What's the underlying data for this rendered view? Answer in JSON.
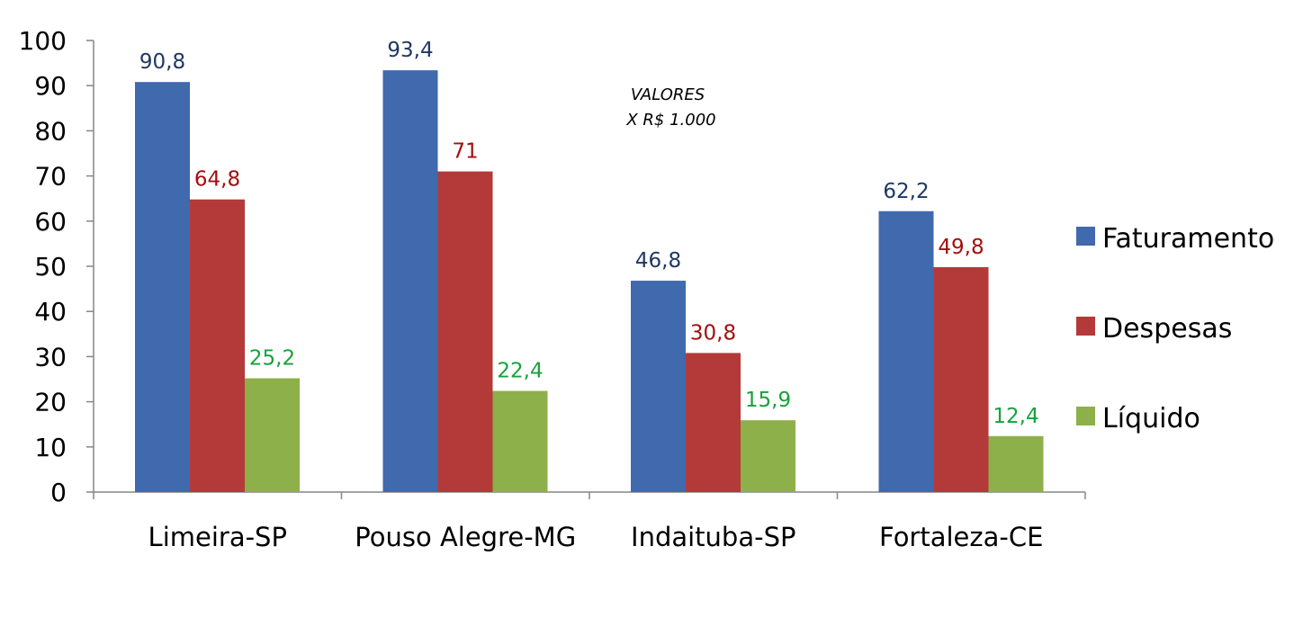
{
  "chart_data": {
    "type": "bar",
    "categories": [
      "Limeira-SP",
      "Pouso Alegre-MG",
      "Indaituba-SP",
      "Fortaleza-CE"
    ],
    "series": [
      {
        "name": "Faturamento",
        "values": [
          90.8,
          93.4,
          46.8,
          62.2
        ],
        "labels": [
          "90,8",
          "93,4",
          "46,8",
          "62,2"
        ],
        "color": "#4069AE",
        "label_color": "#1F3864"
      },
      {
        "name": "Despesas",
        "values": [
          64.8,
          71,
          30.8,
          49.8
        ],
        "labels": [
          "64,8",
          "71",
          "30,8",
          "49,8"
        ],
        "color": "#B43A3A",
        "label_color": "#A30F0F"
      },
      {
        "name": "Líquido",
        "values": [
          25.2,
          22.4,
          15.9,
          12.4
        ],
        "labels": [
          "25,2",
          "22,4",
          "15,9",
          "12,4"
        ],
        "color": "#8DB04A",
        "label_color": "#18A23A"
      }
    ],
    "ylim": [
      0,
      100
    ],
    "yticks": [
      "0",
      "10",
      "20",
      "30",
      "40",
      "50",
      "60",
      "70",
      "80",
      "90",
      "100"
    ],
    "grid": false,
    "legend_position": "right",
    "annotation": [
      "VALORES",
      "X R$ 1.000"
    ]
  }
}
